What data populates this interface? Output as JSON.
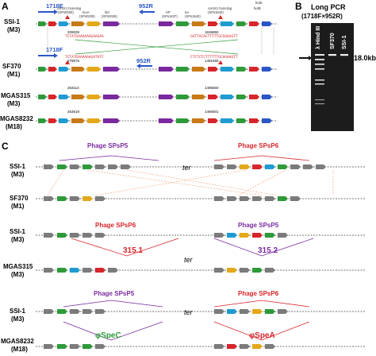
{
  "panels": {
    "A": {
      "letter": "A",
      "primer_fwd": "1718E",
      "primer_fwd2": "1718F",
      "primer_rev": "952R",
      "primer_rev2": "952R",
      "rows": [
        {
          "name": "SSI-1",
          "sub": "(M3)"
        },
        {
          "name": "SF370",
          "sub": "(M1)"
        },
        {
          "name": "MGAS315",
          "sub": "(M3)"
        },
        {
          "name": "MGAS8232",
          "sub": "(M18)"
        }
      ],
      "gene_labels_top": [
        "comX1 homolog",
        "tnuA",
        "ihd",
        "HP",
        "tra",
        "comX1 homolog",
        "fedB",
        "fedE"
      ],
      "loci_top": [
        "(SPs0000)",
        "(SPs0209)",
        "(SPs0026)",
        "(SPs1637)",
        "(SPs1640)",
        "(SPs1643)"
      ],
      "seq1": "TCTATGAAAAAAGAAGAG",
      "seq2": "GATTACACTTTTTGCAGAAGTT",
      "seq3": "TCTATGAAAAAAGATATC",
      "seq4": "CTCTCTCTTTTTTGCAGAAGTT",
      "coord1": "209025",
      "coord2": "1636850",
      "coord3": "279576",
      "coord4": "1491655",
      "coord5": "263113",
      "coord6": "1496550",
      "coord7": "263619",
      "coord8": "1466501"
    },
    "B": {
      "letter": "B",
      "title": "Long PCR",
      "subtitle": "(1718F×952R)",
      "lanes": [
        "λ Hind III",
        "SF370",
        "SSI-1"
      ],
      "band_label": "18.0kb"
    },
    "C": {
      "letter": "C",
      "groups": [
        {
          "phage_left": "Phage SPsP5",
          "phage_right": "Phage SPsP6",
          "row1": "SSI-1",
          "row1_sub": "(M3)",
          "row2": "SF370",
          "row2_sub": "(M1)",
          "ter": "ter"
        },
        {
          "phage_left": "Phage SPsP6",
          "phage_right": "Phage SPsP5",
          "row1": "SSI-1",
          "row1_sub": "(M3)",
          "row2": "MGAS315",
          "row2_sub": "(M3)",
          "ter": "ter",
          "marker_left": "315.1",
          "marker_right": "315.2"
        },
        {
          "phage_left": "Phage SPsP5",
          "phage_right": "Phage SPsP6",
          "row1": "SSI-1",
          "row1_sub": "(M3)",
          "row2": "MGAS8232",
          "row2_sub": "(M18)",
          "ter": "ter",
          "toxin_left": "SpeC",
          "toxin_right": "SpeA"
        }
      ]
    }
  },
  "colors": {
    "purple": "#7a2a9e",
    "red": "#d6262b",
    "green": "#2e9a3a",
    "blue": "#2b56c6",
    "grey": "#7b7b7b"
  }
}
